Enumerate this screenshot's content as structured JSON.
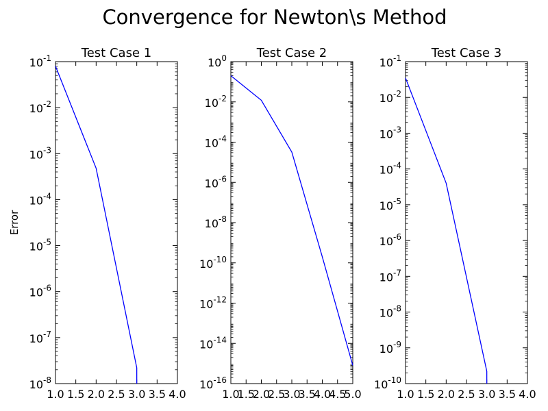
{
  "figure_title": "Convergence for Newton\\s Method",
  "chart_data": [
    {
      "type": "line",
      "title": "Test Case 1",
      "xlabel": "",
      "ylabel": "Error",
      "yscale": "log",
      "xlim": [
        1.0,
        4.0
      ],
      "ylim_exp": [
        -8,
        -1
      ],
      "x_ticks": [
        "1.0",
        "1.5",
        "2.0",
        "2.5",
        "3.0",
        "3.5",
        "4.0"
      ],
      "y_ticks": [
        {
          "base": "10",
          "exp": "-1"
        },
        {
          "base": "10",
          "exp": "-2"
        },
        {
          "base": "10",
          "exp": "-3"
        },
        {
          "base": "10",
          "exp": "-4"
        },
        {
          "base": "10",
          "exp": "-5"
        },
        {
          "base": "10",
          "exp": "-6"
        },
        {
          "base": "10",
          "exp": "-7"
        },
        {
          "base": "10",
          "exp": "-8"
        }
      ],
      "series": [
        {
          "x": [
            1,
            2,
            3,
            3
          ],
          "y": [
            0.08,
            0.00048,
            2.2e-08,
            1e-08
          ]
        }
      ]
    },
    {
      "type": "line",
      "title": "Test Case 2",
      "xlabel": "",
      "ylabel": "",
      "yscale": "log",
      "xlim": [
        1.0,
        5.0
      ],
      "ylim_exp": [
        -16,
        0
      ],
      "x_ticks": [
        "1.0",
        "1.5",
        "2.0",
        "2.5",
        "3.0",
        "3.5",
        "4.0",
        "4.5",
        "5.0"
      ],
      "y_ticks": [
        {
          "base": "10",
          "exp": "0"
        },
        {
          "base": "10",
          "exp": "-2"
        },
        {
          "base": "10",
          "exp": "-4"
        },
        {
          "base": "10",
          "exp": "-6"
        },
        {
          "base": "10",
          "exp": "-8"
        },
        {
          "base": "10",
          "exp": "-10"
        },
        {
          "base": "10",
          "exp": "-12"
        },
        {
          "base": "10",
          "exp": "-14"
        },
        {
          "base": "10",
          "exp": "-16"
        }
      ],
      "series": [
        {
          "x": [
            1,
            2,
            3,
            4,
            5
          ],
          "y": [
            0.2,
            0.012,
            3.2e-05,
            2e-10,
            8e-16
          ]
        }
      ]
    },
    {
      "type": "line",
      "title": "Test Case 3",
      "xlabel": "",
      "ylabel": "",
      "yscale": "log",
      "xlim": [
        1.0,
        4.0
      ],
      "ylim_exp": [
        -10,
        -1
      ],
      "x_ticks": [
        "1.0",
        "1.5",
        "2.0",
        "2.5",
        "3.0",
        "3.5",
        "4.0"
      ],
      "y_ticks": [
        {
          "base": "10",
          "exp": "-1"
        },
        {
          "base": "10",
          "exp": "-2"
        },
        {
          "base": "10",
          "exp": "-3"
        },
        {
          "base": "10",
          "exp": "-4"
        },
        {
          "base": "10",
          "exp": "-5"
        },
        {
          "base": "10",
          "exp": "-6"
        },
        {
          "base": "10",
          "exp": "-7"
        },
        {
          "base": "10",
          "exp": "-8"
        },
        {
          "base": "10",
          "exp": "-9"
        },
        {
          "base": "10",
          "exp": "-10"
        }
      ],
      "series": [
        {
          "x": [
            1,
            2,
            3,
            3
          ],
          "y": [
            0.035,
            4e-05,
            2.2e-10,
            1e-10
          ]
        }
      ]
    }
  ],
  "colors": {
    "line": "#0000ff",
    "axes": "#000000",
    "background": "#ffffff"
  }
}
